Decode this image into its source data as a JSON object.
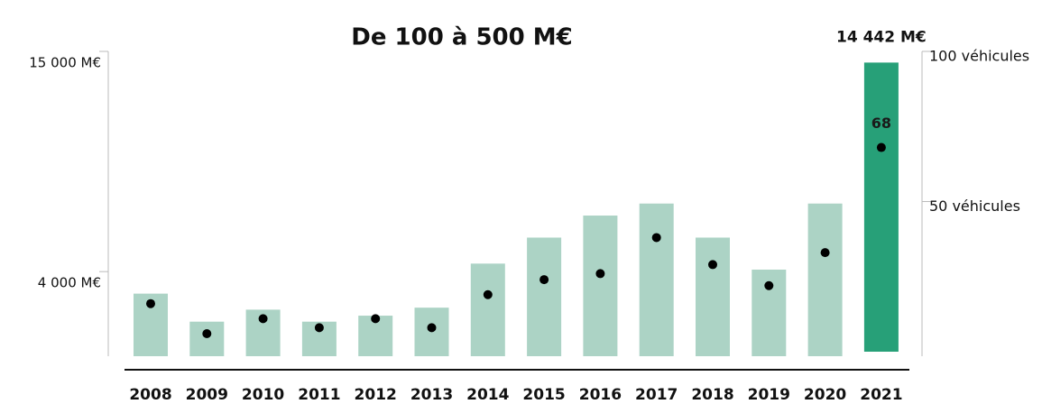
{
  "chart_data": {
    "type": "bar-dot",
    "title": "De 100 à 500 M€",
    "categories": [
      "2008",
      "2009",
      "2010",
      "2011",
      "2012",
      "2013",
      "2014",
      "2015",
      "2016",
      "2017",
      "2018",
      "2019",
      "2020",
      "2021"
    ],
    "series": [
      {
        "kind": "bar",
        "colors": [
          "#acd3c5",
          "#acd3c5",
          "#acd3c5",
          "#acd3c5",
          "#acd3c5",
          "#acd3c5",
          "#acd3c5",
          "#acd3c5",
          "#acd3c5",
          "#acd3c5",
          "#acd3c5",
          "#acd3c5",
          "#acd3c5",
          "#27a078"
        ],
        "values": [
          2900,
          1500,
          2100,
          1500,
          1800,
          2200,
          4400,
          5700,
          6800,
          7400,
          5700,
          4100,
          7400,
          14442
        ],
        "value_labels": [
          null,
          null,
          null,
          null,
          null,
          null,
          null,
          null,
          null,
          null,
          null,
          null,
          null,
          "14 442 M€"
        ]
      },
      {
        "kind": "dot",
        "axis": "y2",
        "color": "#000000",
        "values": [
          16,
          6,
          11,
          8,
          11,
          8,
          19,
          24,
          26,
          38,
          29,
          22,
          33,
          68
        ],
        "value_labels": [
          null,
          null,
          null,
          null,
          null,
          null,
          null,
          null,
          null,
          null,
          null,
          null,
          null,
          "68"
        ]
      }
    ],
    "ylim": [
      0,
      15000
    ],
    "yticks": [
      {
        "value": 4000,
        "label": "4 000 M€"
      },
      {
        "value": 15000,
        "label": "15 000 M€"
      }
    ],
    "y2lim": [
      0,
      100
    ],
    "y2ticks": [
      {
        "value": 50,
        "label": "50 véhicules"
      },
      {
        "value": 100,
        "label": "100 véhicules"
      }
    ]
  }
}
